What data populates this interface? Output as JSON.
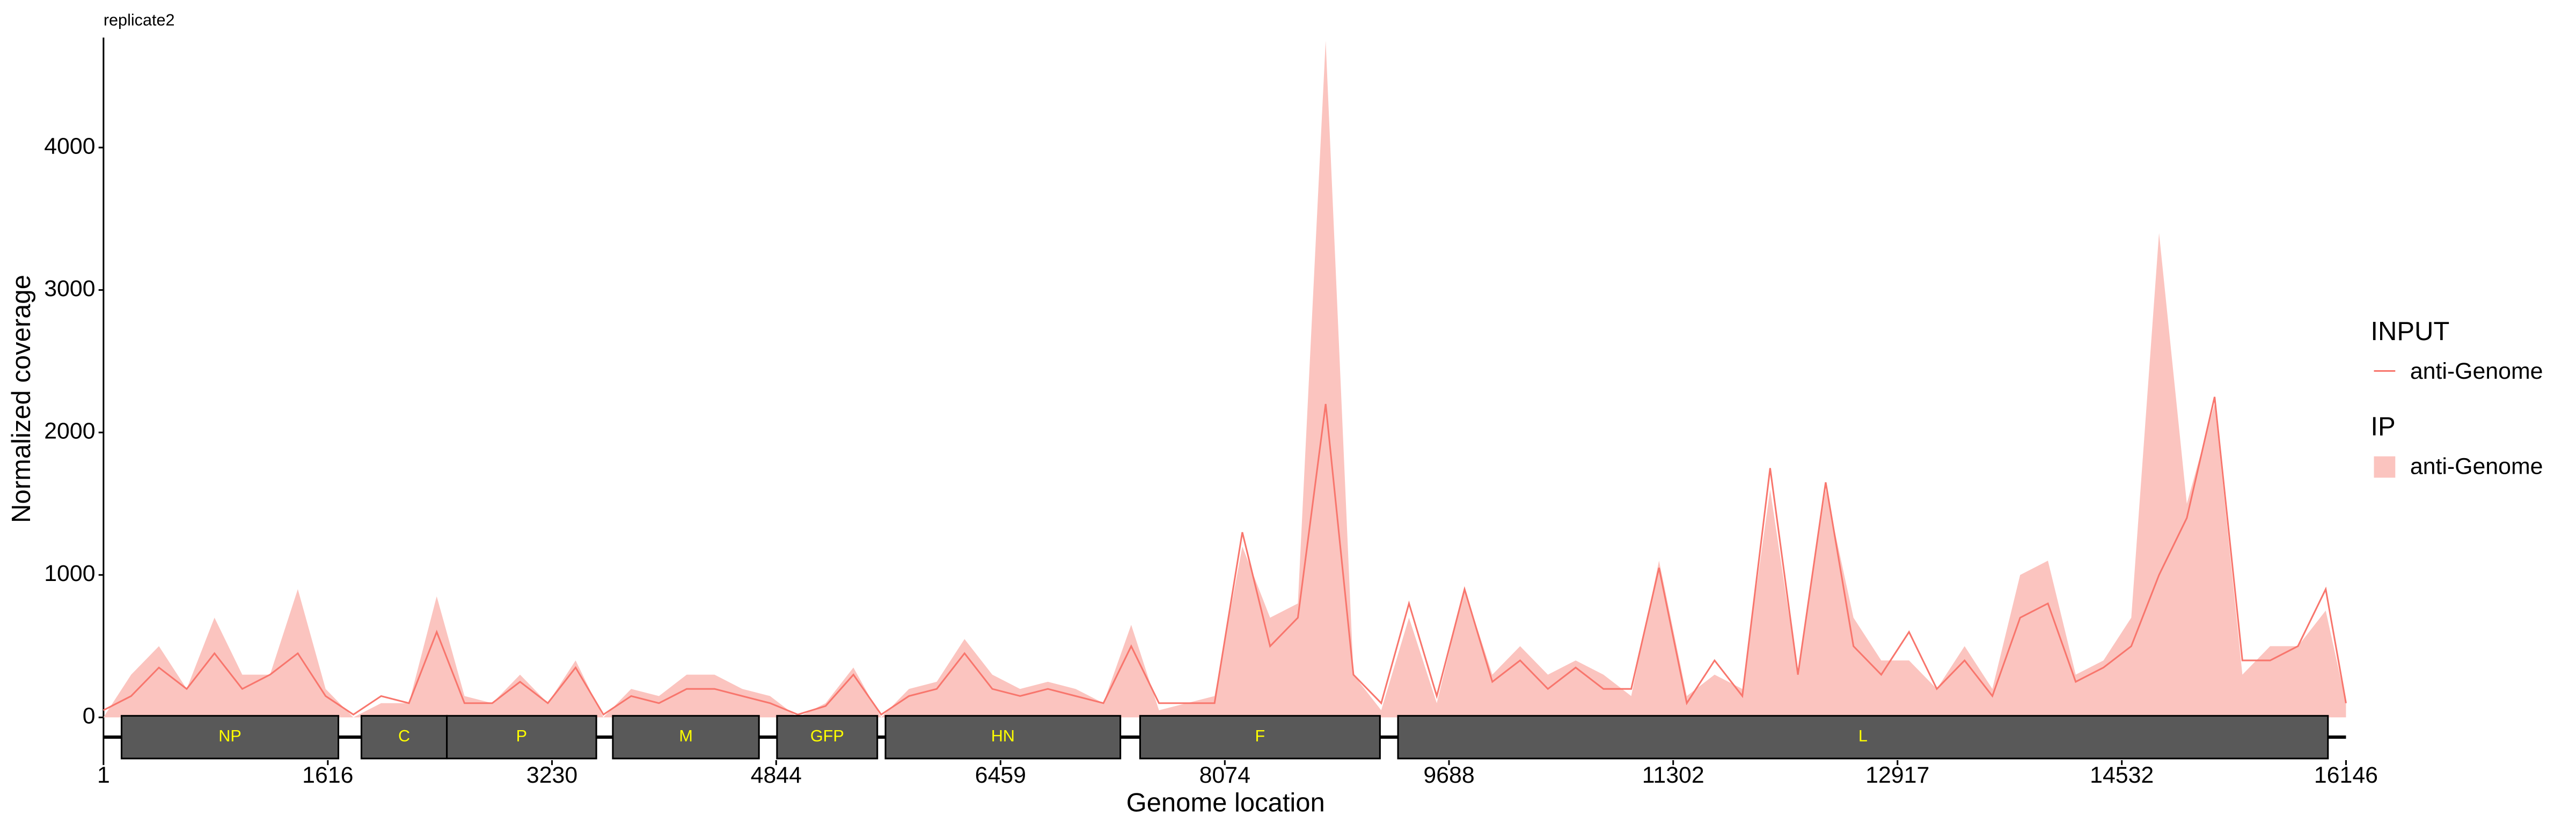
{
  "chart_data": {
    "type": "coverage",
    "title": "replicate2",
    "x_label": "Genome location",
    "y_label": "Normalized coverage",
    "xlim": [
      1,
      16146
    ],
    "ylim": [
      -300,
      4780
    ],
    "xticks": [
      1,
      1616,
      3230,
      4844,
      6459,
      8074,
      9688,
      11302,
      12917,
      14532,
      16146
    ],
    "yticks": [
      0,
      1000,
      2000,
      3000,
      4000
    ],
    "x": [
      0,
      200,
      400,
      600,
      800,
      1000,
      1200,
      1400,
      1600,
      1800,
      2000,
      2200,
      2400,
      2600,
      2800,
      3000,
      3200,
      3400,
      3600,
      3800,
      4000,
      4200,
      4400,
      4600,
      4800,
      5000,
      5200,
      5400,
      5600,
      5800,
      6000,
      6200,
      6400,
      6600,
      6800,
      7000,
      7200,
      7400,
      7600,
      7800,
      8000,
      8200,
      8400,
      8600,
      8800,
      9000,
      9200,
      9400,
      9600,
      9800,
      10000,
      10200,
      10400,
      10600,
      10800,
      11000,
      11200,
      11400,
      11600,
      11800,
      12000,
      12200,
      12400,
      12600,
      12800,
      13000,
      13200,
      13400,
      13600,
      13800,
      14000,
      14200,
      14400,
      14600,
      14800,
      15000,
      15200,
      15400,
      15600,
      15800,
      16000,
      16146
    ],
    "series": [
      {
        "name": "anti-Genome",
        "legend_title": "INPUT",
        "kind": "line",
        "color": "#f8766d",
        "values": [
          50,
          150,
          350,
          200,
          450,
          200,
          300,
          450,
          150,
          20,
          150,
          100,
          600,
          100,
          100,
          250,
          100,
          350,
          20,
          150,
          100,
          200,
          200,
          150,
          100,
          20,
          80,
          300,
          20,
          150,
          200,
          450,
          200,
          150,
          200,
          150,
          100,
          500,
          100,
          100,
          100,
          1300,
          500,
          700,
          2200,
          300,
          100,
          800,
          150,
          900,
          250,
          400,
          200,
          350,
          200,
          200,
          1050,
          100,
          400,
          150,
          1750,
          300,
          1650,
          500,
          300,
          600,
          200,
          400,
          150,
          700,
          800,
          250,
          350,
          500,
          1000,
          1400,
          2250,
          400,
          400,
          500,
          900,
          100
        ]
      },
      {
        "name": "anti-Genome",
        "legend_title": "IP",
        "kind": "area",
        "color": "#fbc4bf",
        "values": [
          0,
          300,
          500,
          200,
          700,
          300,
          300,
          900,
          200,
          0,
          100,
          100,
          850,
          150,
          100,
          300,
          100,
          400,
          0,
          200,
          150,
          300,
          300,
          200,
          150,
          0,
          100,
          350,
          0,
          200,
          250,
          550,
          300,
          200,
          250,
          200,
          100,
          650,
          50,
          100,
          150,
          1200,
          700,
          800,
          4750,
          300,
          50,
          700,
          100,
          900,
          300,
          500,
          300,
          400,
          300,
          150,
          1100,
          150,
          300,
          200,
          1600,
          300,
          1600,
          700,
          400,
          400,
          200,
          500,
          200,
          1000,
          1100,
          300,
          400,
          700,
          3400,
          1500,
          2200,
          300,
          500,
          500,
          750,
          100
        ]
      }
    ],
    "genes": [
      {
        "name": "NP",
        "start": 131,
        "end": 1692
      },
      {
        "name": "C",
        "start": 1858,
        "end": 2473
      },
      {
        "name": "P",
        "start": 2473,
        "end": 3549
      },
      {
        "name": "M",
        "start": 3668,
        "end": 4720
      },
      {
        "name": "GFP",
        "start": 4850,
        "end": 5572
      },
      {
        "name": "HN",
        "start": 5631,
        "end": 7322
      },
      {
        "name": "F",
        "start": 7464,
        "end": 9191
      },
      {
        "name": "L",
        "start": 9321,
        "end": 16016
      }
    ]
  }
}
